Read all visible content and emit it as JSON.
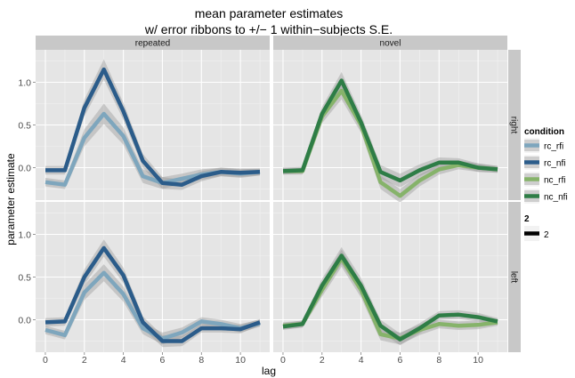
{
  "chart_data": {
    "type": "line",
    "title_line1": "mean parameter estimates",
    "title_line2": "w/ error ribbons to +/− 1 within−subjects S.E.",
    "xlabel": "lag",
    "ylabel": "parameter estimate",
    "xlim": [
      -0.5,
      11.5
    ],
    "ylim": [
      -0.38,
      1.38
    ],
    "x_ticks": [
      0,
      2,
      4,
      6,
      8,
      10
    ],
    "x_tick_labels": [
      "0",
      "2",
      "4",
      "6",
      "8",
      "10"
    ],
    "y_ticks": [
      0,
      0.5,
      1.0
    ],
    "y_tick_labels": [
      "0.0",
      "0.5",
      "1.0"
    ],
    "grid": true,
    "col_facets": [
      "repeated",
      "novel"
    ],
    "row_facets": [
      "right",
      "left"
    ],
    "x": [
      0,
      1,
      2,
      3,
      4,
      5,
      6,
      7,
      8,
      9,
      10,
      11
    ],
    "legend": {
      "title": "condition",
      "entries": [
        "rc_rfi",
        "rc_nfi",
        "nc_rfi",
        "nc_nfi"
      ],
      "size_title": "2",
      "size_entry": "2",
      "position": "right"
    },
    "colors": {
      "rc_rfi": "#7ea6bd",
      "rc_nfi": "#2b5c8a",
      "nc_rfi": "#86b36a",
      "nc_nfi": "#2e7d46",
      "ribbon": "#999999",
      "panel_bg": "#e5e5e5",
      "strip_bg": "#c8c8c8"
    },
    "panels": [
      {
        "row": "right",
        "col": "repeated",
        "series": [
          {
            "name": "rc_rfi",
            "values": [
              -0.17,
              -0.2,
              0.35,
              0.63,
              0.37,
              -0.1,
              -0.18,
              -0.13,
              -0.08,
              -0.05,
              -0.07,
              -0.05
            ],
            "se": [
              0.05,
              0.05,
              0.1,
              0.12,
              0.1,
              0.08,
              0.07,
              0.06,
              0.06,
              0.05,
              0.05,
              0.04
            ]
          },
          {
            "name": "rc_nfi",
            "values": [
              -0.03,
              -0.03,
              0.7,
              1.15,
              0.66,
              0.08,
              -0.18,
              -0.2,
              -0.1,
              -0.05,
              -0.06,
              -0.05
            ],
            "se": [
              0.05,
              0.05,
              0.1,
              0.12,
              0.1,
              0.08,
              0.07,
              0.06,
              0.06,
              0.05,
              0.05,
              0.04
            ]
          }
        ]
      },
      {
        "row": "right",
        "col": "novel",
        "series": [
          {
            "name": "nc_rfi",
            "values": [
              -0.04,
              -0.04,
              0.6,
              0.9,
              0.5,
              -0.17,
              -0.33,
              -0.15,
              -0.02,
              0.03,
              0.0,
              -0.02
            ],
            "se": [
              0.04,
              0.04,
              0.08,
              0.1,
              0.09,
              0.08,
              0.08,
              0.07,
              0.06,
              0.05,
              0.05,
              0.04
            ]
          },
          {
            "name": "nc_nfi",
            "values": [
              -0.04,
              -0.03,
              0.63,
              1.02,
              0.53,
              -0.05,
              -0.15,
              -0.03,
              0.06,
              0.06,
              0.0,
              -0.02
            ],
            "se": [
              0.04,
              0.04,
              0.08,
              0.1,
              0.09,
              0.08,
              0.08,
              0.07,
              0.06,
              0.05,
              0.05,
              0.04
            ]
          }
        ]
      },
      {
        "row": "left",
        "col": "repeated",
        "series": [
          {
            "name": "rc_rfi",
            "values": [
              -0.12,
              -0.18,
              0.32,
              0.55,
              0.3,
              -0.1,
              -0.22,
              -0.15,
              -0.02,
              -0.05,
              -0.1,
              -0.04
            ],
            "se": [
              0.05,
              0.05,
              0.09,
              0.1,
              0.09,
              0.07,
              0.07,
              0.06,
              0.05,
              0.05,
              0.05,
              0.04
            ]
          },
          {
            "name": "rc_nfi",
            "values": [
              -0.03,
              -0.02,
              0.5,
              0.84,
              0.52,
              -0.03,
              -0.25,
              -0.25,
              -0.1,
              -0.1,
              -0.11,
              -0.03
            ],
            "se": [
              0.05,
              0.05,
              0.09,
              0.1,
              0.09,
              0.07,
              0.07,
              0.06,
              0.05,
              0.05,
              0.05,
              0.04
            ]
          }
        ]
      },
      {
        "row": "left",
        "col": "novel",
        "series": [
          {
            "name": "nc_rfi",
            "values": [
              -0.07,
              -0.05,
              0.35,
              0.72,
              0.35,
              -0.17,
              -0.22,
              -0.12,
              -0.05,
              -0.07,
              -0.06,
              -0.03
            ],
            "se": [
              0.04,
              0.04,
              0.08,
              0.1,
              0.09,
              0.07,
              0.07,
              0.06,
              0.05,
              0.05,
              0.05,
              0.04
            ]
          },
          {
            "name": "nc_nfi",
            "values": [
              -0.08,
              -0.05,
              0.4,
              0.75,
              0.4,
              -0.07,
              -0.23,
              -0.1,
              0.05,
              0.06,
              0.03,
              -0.02
            ],
            "se": [
              0.04,
              0.04,
              0.08,
              0.1,
              0.09,
              0.07,
              0.07,
              0.06,
              0.05,
              0.05,
              0.05,
              0.04
            ]
          }
        ]
      }
    ]
  }
}
